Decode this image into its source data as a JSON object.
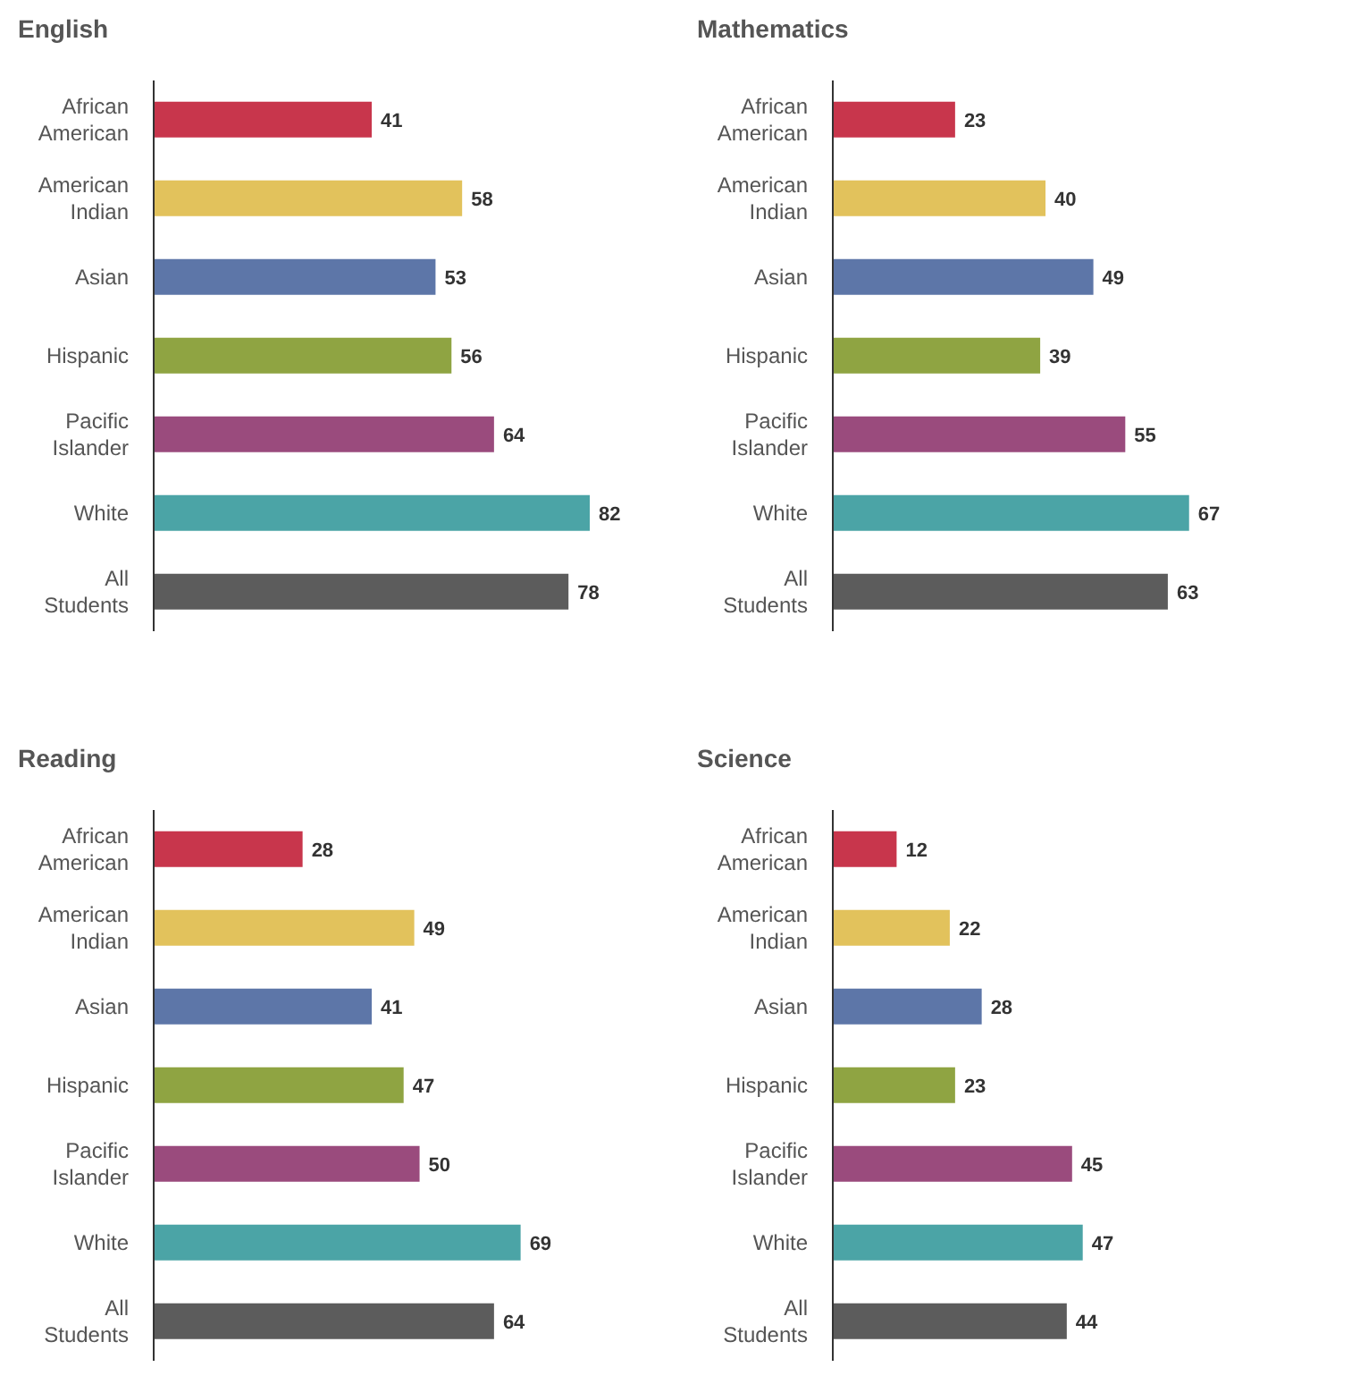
{
  "chart_data": [
    {
      "type": "bar",
      "orientation": "horizontal",
      "title": "English",
      "categories": [
        "African American",
        "American Indian",
        "Asian",
        "Hispanic",
        "Pacific Islander",
        "White",
        "All Students"
      ],
      "values": [
        41,
        58,
        53,
        56,
        64,
        82,
        78
      ],
      "colors": [
        "#c8364c",
        "#e2c25c",
        "#5d76a8",
        "#8fa442",
        "#9a4b7d",
        "#4ba4a6",
        "#5c5c5c"
      ],
      "data_labels": true
    },
    {
      "type": "bar",
      "orientation": "horizontal",
      "title": "Mathematics",
      "categories": [
        "African American",
        "American Indian",
        "Asian",
        "Hispanic",
        "Pacific Islander",
        "White",
        "All Students"
      ],
      "values": [
        23,
        40,
        49,
        39,
        55,
        67,
        63
      ],
      "colors": [
        "#c8364c",
        "#e2c25c",
        "#5d76a8",
        "#8fa442",
        "#9a4b7d",
        "#4ba4a6",
        "#5c5c5c"
      ],
      "data_labels": true
    },
    {
      "type": "bar",
      "orientation": "horizontal",
      "title": "Reading",
      "categories": [
        "African American",
        "American Indian",
        "Asian",
        "Hispanic",
        "Pacific Islander",
        "White",
        "All Students"
      ],
      "values": [
        28,
        49,
        41,
        47,
        50,
        69,
        64
      ],
      "colors": [
        "#c8364c",
        "#e2c25c",
        "#5d76a8",
        "#8fa442",
        "#9a4b7d",
        "#4ba4a6",
        "#5c5c5c"
      ],
      "data_labels": true
    },
    {
      "type": "bar",
      "orientation": "horizontal",
      "title": "Science",
      "categories": [
        "African American",
        "American Indian",
        "Asian",
        "Hispanic",
        "Pacific Islander",
        "White",
        "All Students"
      ],
      "values": [
        12,
        22,
        28,
        23,
        45,
        47,
        44
      ],
      "colors": [
        "#c8364c",
        "#e2c25c",
        "#5d76a8",
        "#8fa442",
        "#9a4b7d",
        "#4ba4a6",
        "#5c5c5c"
      ],
      "data_labels": true
    }
  ]
}
